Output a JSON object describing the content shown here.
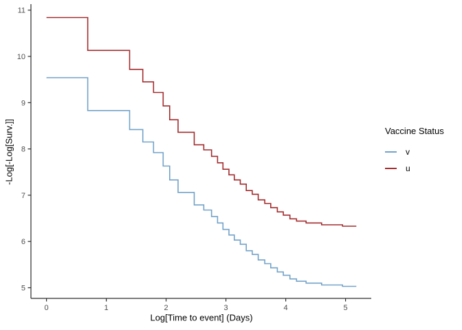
{
  "figure": {
    "xlabel": "Log[Time to event] (Days)",
    "ylabel": "-Log[-Log[Surv.]]"
  },
  "legend": {
    "title": "Vaccine Status",
    "items": [
      {
        "label": "v",
        "color": "#72A2C9"
      },
      {
        "label": "u",
        "color": "#A32B2D"
      }
    ]
  },
  "colors": {
    "background": "#ffffff",
    "axis_line": "#2a2a2a",
    "tick_label": "#4d4d4d",
    "axis_title": "#000000",
    "series_v": "#72A2C9",
    "series_u": "#A32B2D"
  },
  "chart_data": {
    "type": "line",
    "subtype": "step-survival-cloglog",
    "title": "",
    "xlabel": "Log[Time to event] (Days)",
    "ylabel": "-Log[-Log[Surv.]]",
    "legend_title": "Vaccine Status",
    "legend_position": "right",
    "grid": false,
    "xlim": [
      -0.26,
      5.43
    ],
    "ylim": [
      4.77,
      11.13
    ],
    "x_ticks": [
      0,
      1,
      2,
      3,
      4,
      5
    ],
    "y_ticks": [
      5,
      6,
      7,
      8,
      9,
      10,
      11
    ],
    "x_start": 0,
    "x_end": 5.18,
    "steps_x": [
      0.69,
      1.39,
      1.61,
      1.79,
      1.95,
      2.06,
      2.2,
      2.47,
      2.63,
      2.76,
      2.86,
      2.95,
      3.05,
      3.14,
      3.24,
      3.34,
      3.44,
      3.54,
      3.65,
      3.75,
      3.86,
      3.96,
      4.07,
      4.18,
      4.34,
      4.6,
      4.95
    ],
    "series": [
      {
        "name": "v",
        "color": "#72A2C9",
        "start": 9.54,
        "values": [
          8.83,
          8.42,
          8.15,
          7.92,
          7.63,
          7.33,
          7.06,
          6.79,
          6.68,
          6.54,
          6.4,
          6.26,
          6.14,
          6.03,
          5.94,
          5.8,
          5.72,
          5.6,
          5.52,
          5.43,
          5.34,
          5.27,
          5.19,
          5.14,
          5.1,
          5.06,
          5.03
        ]
      },
      {
        "name": "u",
        "color": "#A32B2D",
        "start": 10.84,
        "values": [
          10.13,
          9.72,
          9.45,
          9.22,
          8.93,
          8.63,
          8.36,
          8.09,
          7.98,
          7.84,
          7.7,
          7.56,
          7.44,
          7.33,
          7.24,
          7.1,
          7.02,
          6.9,
          6.82,
          6.73,
          6.64,
          6.57,
          6.49,
          6.44,
          6.4,
          6.36,
          6.33
        ]
      }
    ]
  }
}
